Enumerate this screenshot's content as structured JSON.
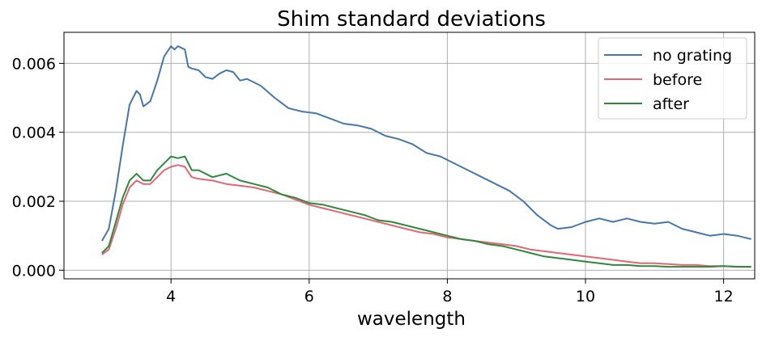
{
  "chart_data": {
    "type": "line",
    "title": "Shim standard deviations",
    "xlabel": "wavelength",
    "ylabel": "",
    "xlim": [
      2.45,
      12.45
    ],
    "ylim": [
      -0.00025,
      0.0069
    ],
    "xticks": [
      4,
      6,
      8,
      10,
      12
    ],
    "xtick_labels": [
      "4",
      "6",
      "8",
      "10",
      "12"
    ],
    "yticks": [
      0.0,
      0.002,
      0.004,
      0.006
    ],
    "ytick_labels": [
      "0.000",
      "0.002",
      "0.004",
      "0.006"
    ],
    "grid": true,
    "legend_position": "top-right",
    "series": [
      {
        "name": "no grating",
        "color": "#4677a9",
        "points": [
          [
            3.0,
            0.00085
          ],
          [
            3.1,
            0.0012
          ],
          [
            3.2,
            0.0023
          ],
          [
            3.3,
            0.0036
          ],
          [
            3.4,
            0.0048
          ],
          [
            3.5,
            0.0052
          ],
          [
            3.55,
            0.0051
          ],
          [
            3.6,
            0.00475
          ],
          [
            3.7,
            0.0049
          ],
          [
            3.8,
            0.0055
          ],
          [
            3.9,
            0.0062
          ],
          [
            4.0,
            0.0065
          ],
          [
            4.05,
            0.0064
          ],
          [
            4.1,
            0.0065
          ],
          [
            4.2,
            0.0064
          ],
          [
            4.25,
            0.0059
          ],
          [
            4.3,
            0.00585
          ],
          [
            4.4,
            0.0058
          ],
          [
            4.5,
            0.0056
          ],
          [
            4.6,
            0.00555
          ],
          [
            4.7,
            0.0057
          ],
          [
            4.8,
            0.0058
          ],
          [
            4.9,
            0.00575
          ],
          [
            5.0,
            0.0055
          ],
          [
            5.1,
            0.00555
          ],
          [
            5.3,
            0.00535
          ],
          [
            5.5,
            0.005
          ],
          [
            5.7,
            0.0047
          ],
          [
            5.9,
            0.0046
          ],
          [
            6.1,
            0.00455
          ],
          [
            6.3,
            0.0044
          ],
          [
            6.5,
            0.00425
          ],
          [
            6.7,
            0.0042
          ],
          [
            6.9,
            0.0041
          ],
          [
            7.1,
            0.0039
          ],
          [
            7.3,
            0.0038
          ],
          [
            7.5,
            0.00365
          ],
          [
            7.7,
            0.0034
          ],
          [
            7.9,
            0.0033
          ],
          [
            8.1,
            0.0031
          ],
          [
            8.3,
            0.0029
          ],
          [
            8.5,
            0.0027
          ],
          [
            8.7,
            0.0025
          ],
          [
            8.9,
            0.0023
          ],
          [
            9.1,
            0.002
          ],
          [
            9.3,
            0.0016
          ],
          [
            9.5,
            0.0013
          ],
          [
            9.6,
            0.0012
          ],
          [
            9.8,
            0.00125
          ],
          [
            10.0,
            0.0014
          ],
          [
            10.2,
            0.0015
          ],
          [
            10.4,
            0.0014
          ],
          [
            10.6,
            0.0015
          ],
          [
            10.8,
            0.0014
          ],
          [
            11.0,
            0.00135
          ],
          [
            11.2,
            0.0014
          ],
          [
            11.4,
            0.0012
          ],
          [
            11.6,
            0.0011
          ],
          [
            11.8,
            0.001
          ],
          [
            12.0,
            0.00105
          ],
          [
            12.2,
            0.001
          ],
          [
            12.3,
            0.00095
          ],
          [
            12.4,
            0.0009
          ]
        ]
      },
      {
        "name": "before",
        "color": "#e46675",
        "points": [
          [
            3.0,
            0.00045
          ],
          [
            3.1,
            0.0006
          ],
          [
            3.2,
            0.0012
          ],
          [
            3.3,
            0.0019
          ],
          [
            3.4,
            0.0024
          ],
          [
            3.5,
            0.0026
          ],
          [
            3.6,
            0.0025
          ],
          [
            3.7,
            0.0025
          ],
          [
            3.8,
            0.0027
          ],
          [
            3.9,
            0.0029
          ],
          [
            4.0,
            0.003
          ],
          [
            4.1,
            0.00305
          ],
          [
            4.2,
            0.003
          ],
          [
            4.3,
            0.0027
          ],
          [
            4.4,
            0.00265
          ],
          [
            4.6,
            0.0026
          ],
          [
            4.8,
            0.0025
          ],
          [
            5.0,
            0.00245
          ],
          [
            5.2,
            0.0024
          ],
          [
            5.4,
            0.0023
          ],
          [
            5.6,
            0.0022
          ],
          [
            5.8,
            0.00205
          ],
          [
            6.0,
            0.0019
          ],
          [
            6.2,
            0.0018
          ],
          [
            6.4,
            0.0017
          ],
          [
            6.6,
            0.0016
          ],
          [
            6.8,
            0.0015
          ],
          [
            7.0,
            0.0014
          ],
          [
            7.2,
            0.0013
          ],
          [
            7.4,
            0.0012
          ],
          [
            7.6,
            0.0011
          ],
          [
            7.8,
            0.00105
          ],
          [
            8.0,
            0.00095
          ],
          [
            8.2,
            0.0009
          ],
          [
            8.4,
            0.00085
          ],
          [
            8.6,
            0.0008
          ],
          [
            8.8,
            0.00075
          ],
          [
            9.0,
            0.0007
          ],
          [
            9.2,
            0.0006
          ],
          [
            9.4,
            0.00055
          ],
          [
            9.6,
            0.0005
          ],
          [
            9.8,
            0.00045
          ],
          [
            10.0,
            0.0004
          ],
          [
            10.2,
            0.00035
          ],
          [
            10.4,
            0.0003
          ],
          [
            10.6,
            0.00025
          ],
          [
            10.8,
            0.0002
          ],
          [
            11.0,
            0.0002
          ],
          [
            11.2,
            0.00018
          ],
          [
            11.4,
            0.00015
          ],
          [
            11.6,
            0.00015
          ],
          [
            11.8,
            0.00012
          ],
          [
            12.0,
            0.00012
          ],
          [
            12.2,
            0.0001
          ],
          [
            12.4,
            0.0001
          ]
        ]
      },
      {
        "name": "after",
        "color": "#2d8a3b",
        "points": [
          [
            3.0,
            0.0005
          ],
          [
            3.1,
            0.0007
          ],
          [
            3.2,
            0.0014
          ],
          [
            3.3,
            0.0021
          ],
          [
            3.4,
            0.0026
          ],
          [
            3.5,
            0.0028
          ],
          [
            3.6,
            0.0026
          ],
          [
            3.7,
            0.0026
          ],
          [
            3.8,
            0.0029
          ],
          [
            3.9,
            0.0031
          ],
          [
            4.0,
            0.0033
          ],
          [
            4.1,
            0.00325
          ],
          [
            4.2,
            0.0033
          ],
          [
            4.3,
            0.0029
          ],
          [
            4.4,
            0.0029
          ],
          [
            4.6,
            0.0027
          ],
          [
            4.8,
            0.0028
          ],
          [
            5.0,
            0.0026
          ],
          [
            5.2,
            0.0025
          ],
          [
            5.4,
            0.0024
          ],
          [
            5.6,
            0.0022
          ],
          [
            5.8,
            0.0021
          ],
          [
            6.0,
            0.00195
          ],
          [
            6.2,
            0.0019
          ],
          [
            6.4,
            0.0018
          ],
          [
            6.6,
            0.0017
          ],
          [
            6.8,
            0.0016
          ],
          [
            7.0,
            0.00145
          ],
          [
            7.2,
            0.0014
          ],
          [
            7.4,
            0.0013
          ],
          [
            7.6,
            0.0012
          ],
          [
            7.8,
            0.0011
          ],
          [
            8.0,
            0.001
          ],
          [
            8.2,
            0.0009
          ],
          [
            8.4,
            0.00085
          ],
          [
            8.6,
            0.00075
          ],
          [
            8.8,
            0.0007
          ],
          [
            9.0,
            0.0006
          ],
          [
            9.2,
            0.0005
          ],
          [
            9.4,
            0.0004
          ],
          [
            9.6,
            0.00035
          ],
          [
            9.8,
            0.0003
          ],
          [
            10.0,
            0.00025
          ],
          [
            10.2,
            0.0002
          ],
          [
            10.4,
            0.00015
          ],
          [
            10.6,
            0.00015
          ],
          [
            10.8,
            0.00012
          ],
          [
            11.0,
            0.00012
          ],
          [
            11.2,
            0.0001
          ],
          [
            11.4,
            0.0001
          ],
          [
            11.6,
            0.0001
          ],
          [
            11.8,
            0.0001
          ],
          [
            12.0,
            0.00012
          ],
          [
            12.2,
            0.0001
          ],
          [
            12.4,
            0.0001
          ]
        ]
      }
    ]
  }
}
